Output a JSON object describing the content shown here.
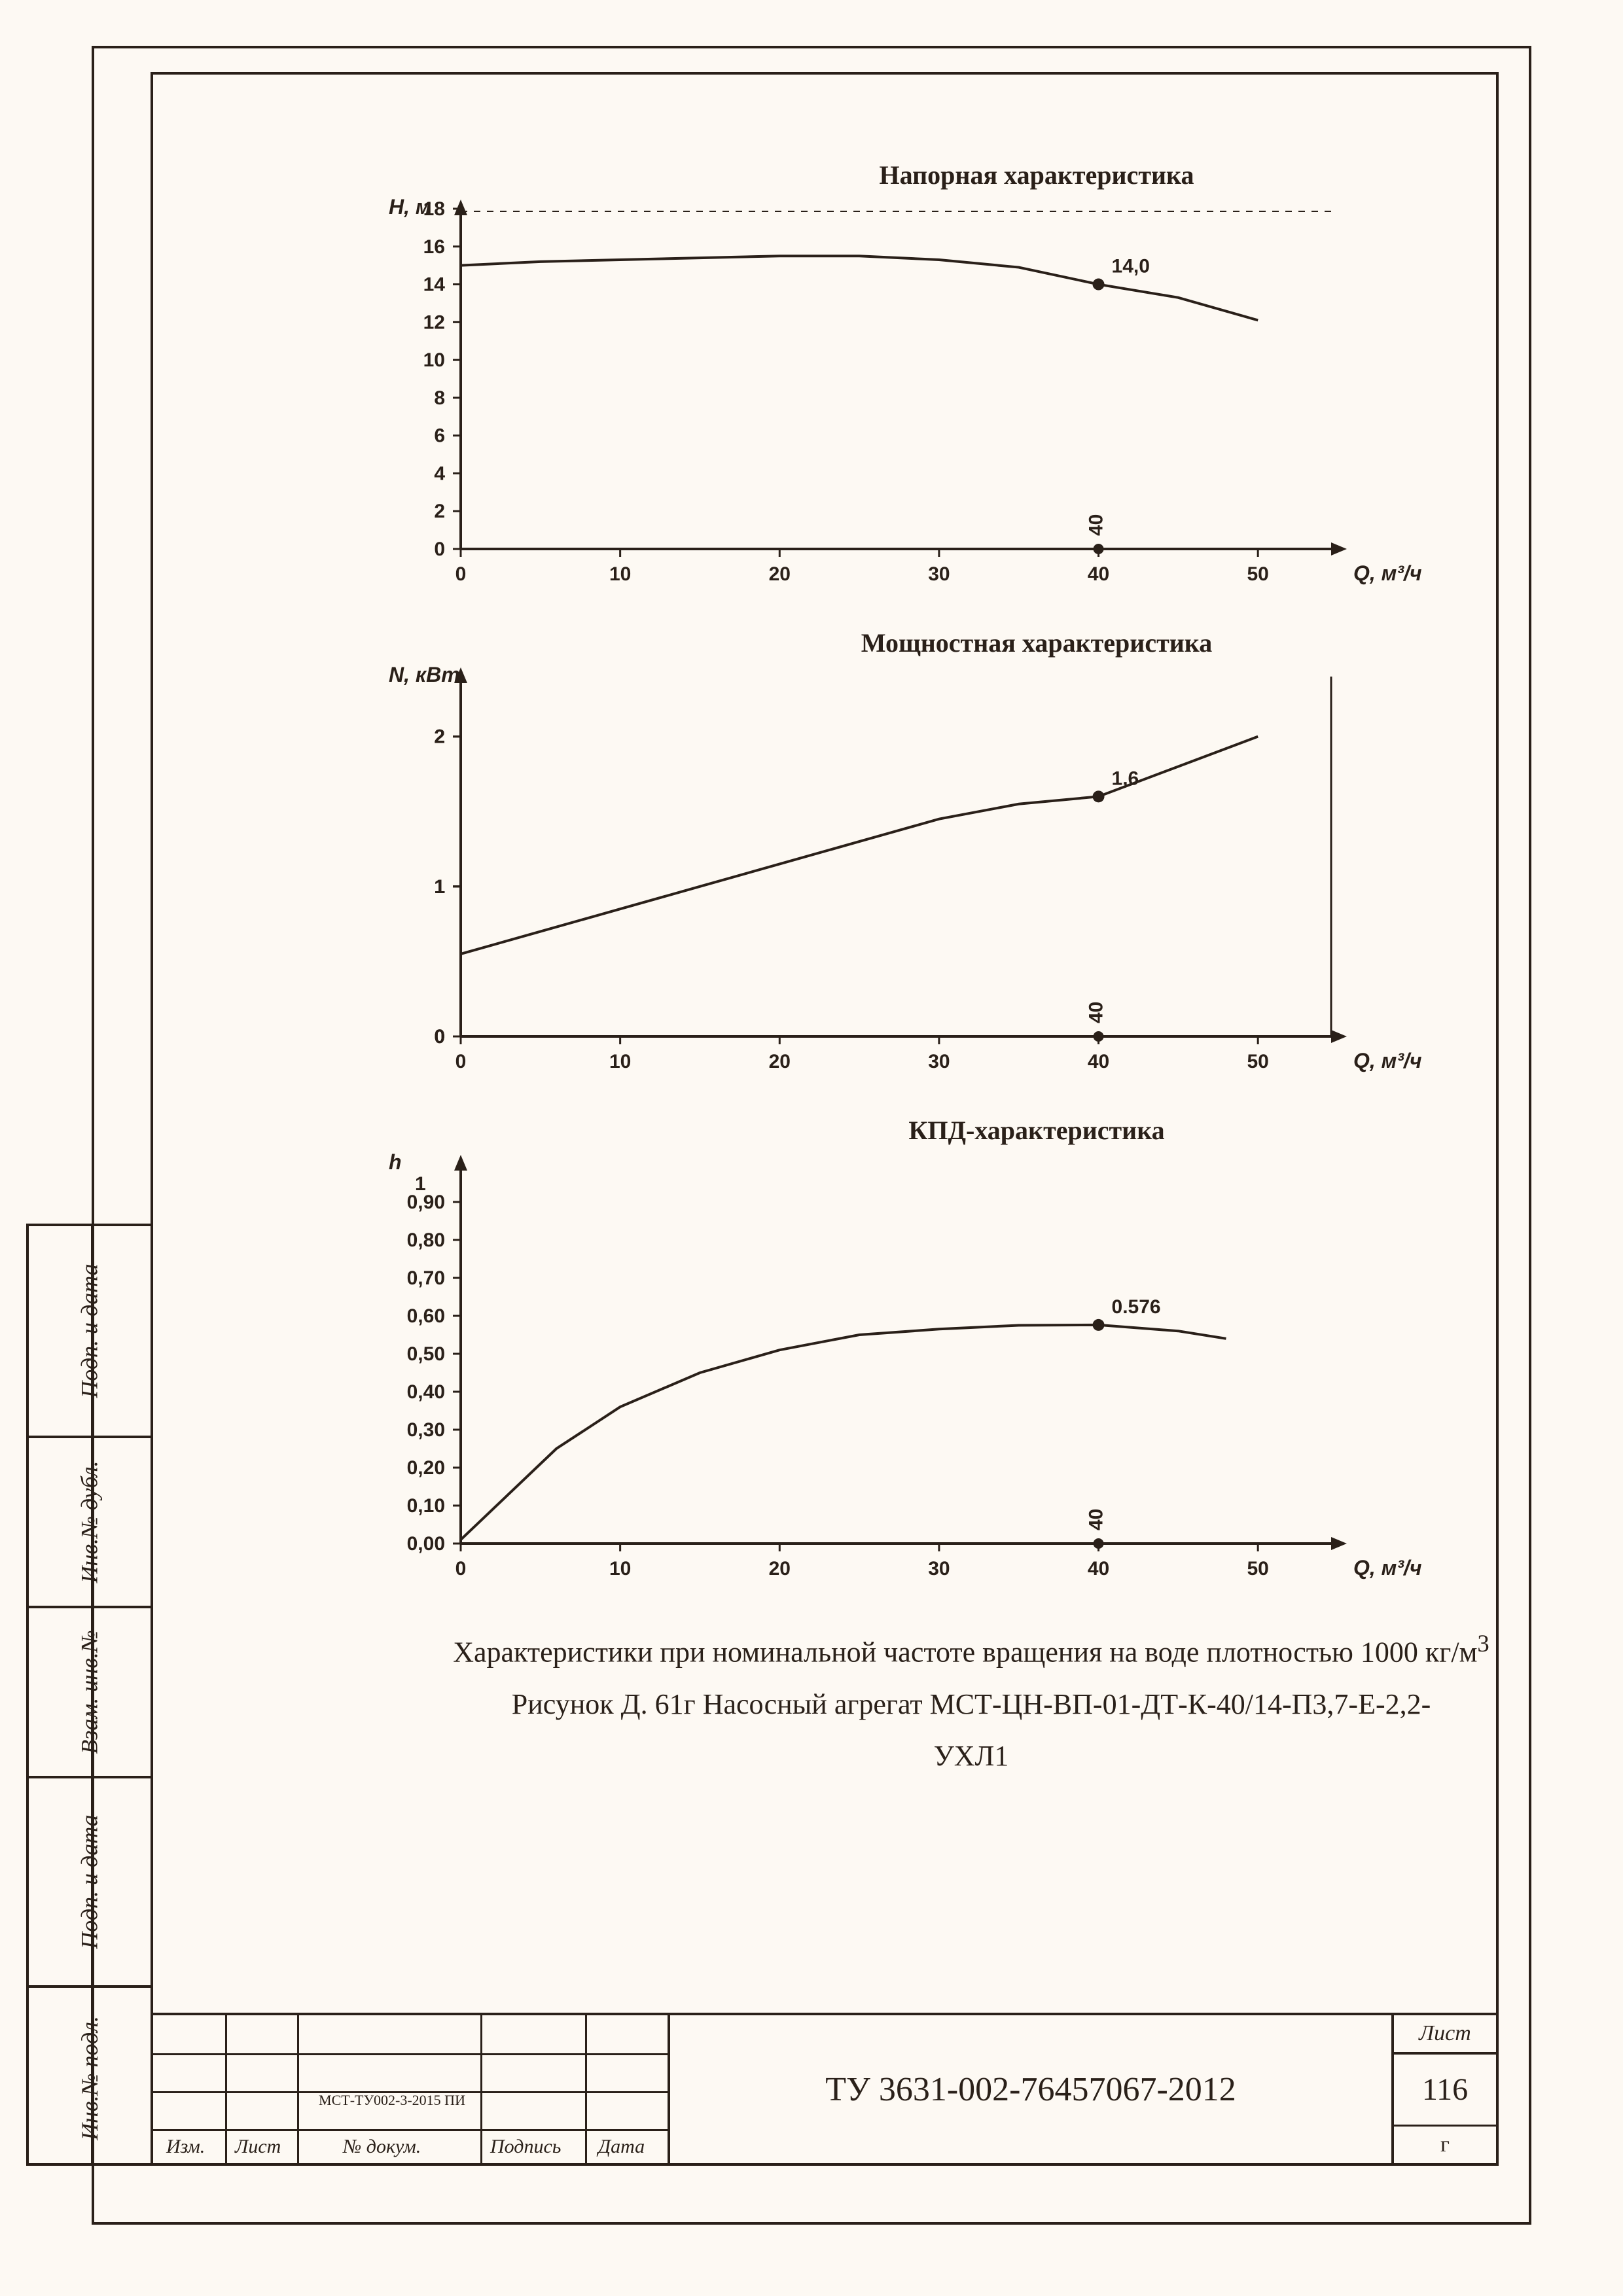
{
  "charts": {
    "x_axis_label": "Q, м³/ч",
    "x_ticks": [
      0,
      10,
      20,
      30,
      40,
      50
    ],
    "xlim": [
      0,
      55
    ],
    "nominal_x": 40,
    "colors": {
      "line": "#2a2019",
      "bg": "#fdf9f3",
      "axis": "#2a2019"
    },
    "line_width": 4,
    "head": {
      "title": "Напорная характеристика",
      "y_axis_label": "H, м",
      "ylim": [
        0,
        18
      ],
      "y_ticks": [
        0,
        2,
        4,
        6,
        8,
        10,
        12,
        14,
        16,
        18
      ],
      "point_label": "14,0",
      "point_value": 14.0,
      "curve": [
        [
          0,
          15.0
        ],
        [
          5,
          15.2
        ],
        [
          10,
          15.3
        ],
        [
          15,
          15.4
        ],
        [
          20,
          15.5
        ],
        [
          25,
          15.5
        ],
        [
          30,
          15.3
        ],
        [
          35,
          14.9
        ],
        [
          40,
          14.0
        ],
        [
          45,
          13.3
        ],
        [
          50,
          12.1
        ]
      ]
    },
    "power": {
      "title": "Мощностная характеристика",
      "y_axis_label": "N, кВт",
      "ylim": [
        0,
        2.4
      ],
      "y_ticks": [
        0,
        0,
        0,
        1,
        1,
        1,
        1,
        1,
        2,
        2,
        2
      ],
      "point_label": "1,6",
      "point_value": 1.6,
      "curve": [
        [
          0,
          0.55
        ],
        [
          5,
          0.7
        ],
        [
          10,
          0.85
        ],
        [
          15,
          1.0
        ],
        [
          20,
          1.15
        ],
        [
          25,
          1.3
        ],
        [
          30,
          1.45
        ],
        [
          35,
          1.55
        ],
        [
          40,
          1.6
        ],
        [
          45,
          1.8
        ],
        [
          50,
          2.0
        ]
      ]
    },
    "eff": {
      "title": "КПД-характеристика",
      "y_axis_label": "h",
      "y_axis_prefix": "1",
      "ylim": [
        0,
        1
      ],
      "y_ticks": [
        0.0,
        0.1,
        0.2,
        0.3,
        0.4,
        0.5,
        0.6,
        0.7,
        0.8,
        0.9
      ],
      "y_tick_labels": [
        "0,00",
        "0,10",
        "0,20",
        "0,30",
        "0,40",
        "0,50",
        "0,60",
        "0,70",
        "0,80",
        "0,90"
      ],
      "point_label": "0.576",
      "point_value": 0.576,
      "curve": [
        [
          0,
          0.01
        ],
        [
          3,
          0.13
        ],
        [
          6,
          0.25
        ],
        [
          10,
          0.36
        ],
        [
          15,
          0.45
        ],
        [
          20,
          0.51
        ],
        [
          25,
          0.55
        ],
        [
          30,
          0.565
        ],
        [
          35,
          0.575
        ],
        [
          40,
          0.576
        ],
        [
          45,
          0.56
        ],
        [
          48,
          0.54
        ]
      ]
    }
  },
  "caption": {
    "line1_pre": "Характеристики при номинальной частоте вращения на воде плотностью 1000 кг/м",
    "line1_sup": "3",
    "line2": "Рисунок Д. 61г Насосный агрегат МСТ-ЦН-ВП-01-ДТ-К-40/14-П3,7-Е-2,2-",
    "line3": "УХЛ1"
  },
  "titleblock": {
    "doc": "ТУ 3631-002-76457067-2012",
    "sheet_header": "Лист",
    "sheet_no": "116",
    "sheet_sub": "г",
    "small_doc": "МСТ-ТУ002-3-2015 ПИ",
    "cols": {
      "izm": "Изм.",
      "list": "Лист",
      "ndoc": "№ докум.",
      "sign": "Подпись",
      "date": "Дата"
    }
  },
  "side_labels": {
    "c1": "Подп. и дата",
    "c2": "Инв.№ дубл.",
    "c3": "Взам. инв.№",
    "c4": "Подп. и дата",
    "c5": "Инв.№ подл."
  }
}
